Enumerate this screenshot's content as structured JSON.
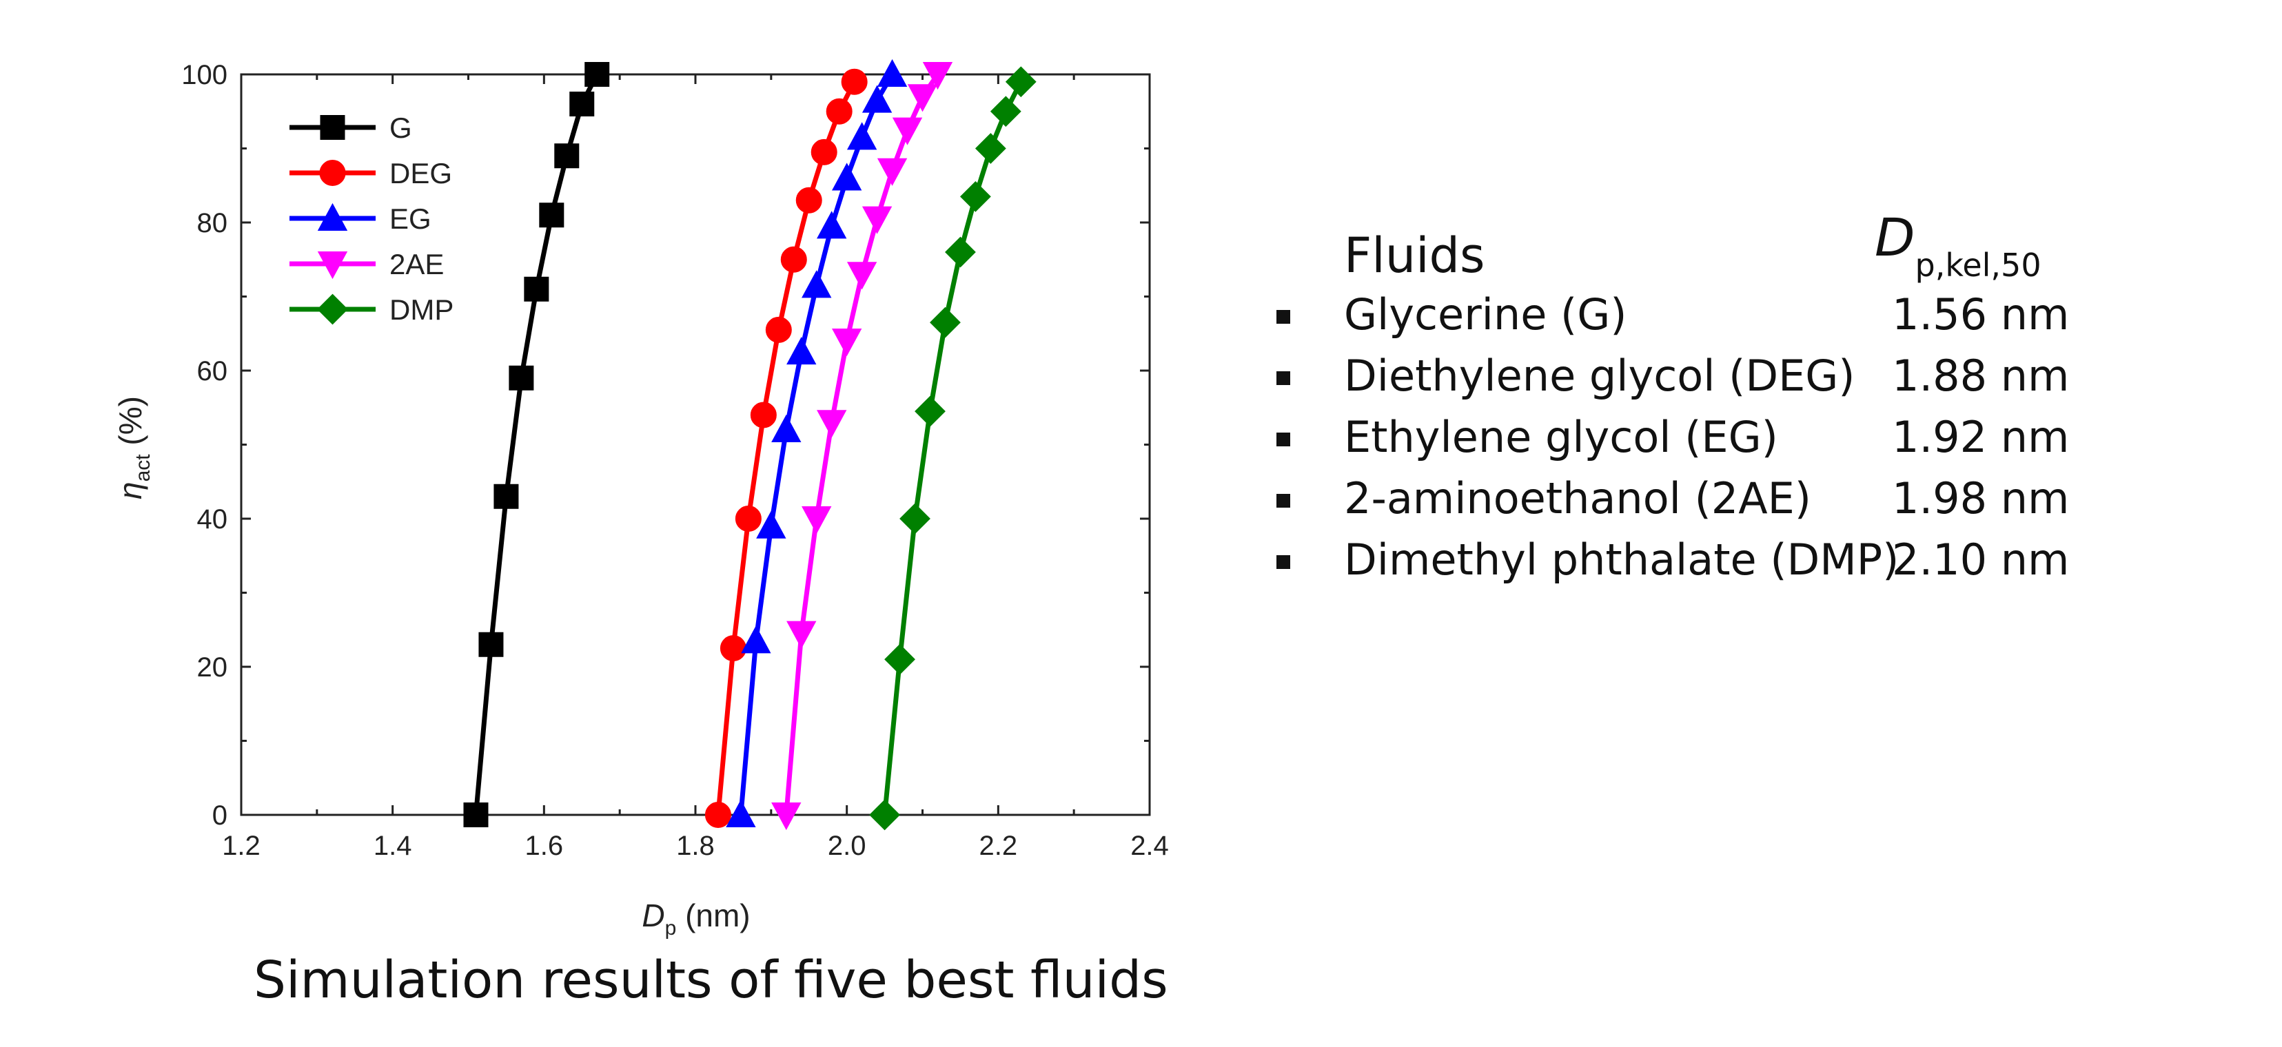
{
  "chart_data": {
    "type": "line",
    "xlabel_main": "D",
    "xlabel_sub": "p",
    "xlabel_unit": " (nm)",
    "ylabel_main": "η",
    "ylabel_sub": "act",
    "ylabel_unit": " (%)",
    "xlim": [
      1.2,
      2.4
    ],
    "ylim": [
      0,
      100
    ],
    "xticks": [
      "1.2",
      "1.4",
      "1.6",
      "1.8",
      "2.0",
      "2.2",
      "2.4"
    ],
    "yticks": [
      "0",
      "20",
      "40",
      "60",
      "80",
      "100"
    ],
    "xtick_values": [
      1.2,
      1.4,
      1.6,
      1.8,
      2.0,
      2.2,
      2.4
    ],
    "ytick_values": [
      0,
      20,
      40,
      60,
      80,
      100
    ],
    "grid": false,
    "legend_position": "top-left",
    "series": [
      {
        "name": "G",
        "color": "#000000",
        "marker": "square",
        "x": [
          1.51,
          1.53,
          1.55,
          1.57,
          1.59,
          1.61,
          1.63,
          1.65,
          1.67
        ],
        "y": [
          0,
          23,
          43,
          59,
          71,
          81,
          89,
          96,
          100
        ]
      },
      {
        "name": "DEG",
        "color": "#ff0000",
        "marker": "circle",
        "x": [
          1.83,
          1.85,
          1.87,
          1.89,
          1.91,
          1.93,
          1.95,
          1.97,
          1.99,
          2.01
        ],
        "y": [
          0,
          22.5,
          40,
          54,
          65.5,
          75,
          83,
          89.5,
          95,
          99
        ]
      },
      {
        "name": "EG",
        "color": "#0000ff",
        "marker": "triangle-up",
        "x": [
          1.86,
          1.88,
          1.9,
          1.92,
          1.94,
          1.96,
          1.98,
          2.0,
          2.02,
          2.04,
          2.06
        ],
        "y": [
          0,
          23.5,
          39,
          52,
          62.5,
          71.5,
          79.5,
          86,
          91.5,
          96.5,
          100
        ]
      },
      {
        "name": "2AE",
        "color": "#ff00ff",
        "marker": "triangle-down",
        "x": [
          1.92,
          1.94,
          1.96,
          1.98,
          2.0,
          2.02,
          2.04,
          2.06,
          2.08,
          2.1,
          2.12
        ],
        "y": [
          0,
          24.5,
          40,
          53,
          64,
          73,
          80.5,
          87,
          92.5,
          97,
          100
        ]
      },
      {
        "name": "DMP",
        "color": "#008000",
        "marker": "diamond",
        "x": [
          2.05,
          2.07,
          2.09,
          2.11,
          2.13,
          2.15,
          2.17,
          2.19,
          2.21,
          2.23
        ],
        "y": [
          0,
          21,
          40,
          54.5,
          66.5,
          76,
          83.5,
          90,
          95,
          99
        ]
      }
    ]
  },
  "caption": "Simulation results of five best fluids",
  "table": {
    "header_fluids": "Fluids",
    "header_dp_main": "D",
    "header_dp_sub": "p,kel,50",
    "rows": [
      {
        "name": "Glycerine (G)",
        "value": "1.56 nm"
      },
      {
        "name": "Diethylene glycol (DEG)",
        "value": "1.88 nm"
      },
      {
        "name": "Ethylene glycol (EG)",
        "value": "1.92 nm"
      },
      {
        "name": "2-aminoethanol (2AE)",
        "value": "1.98 nm"
      },
      {
        "name": "Dimethyl phthalate (DMP)",
        "value": "2.10 nm"
      }
    ]
  }
}
